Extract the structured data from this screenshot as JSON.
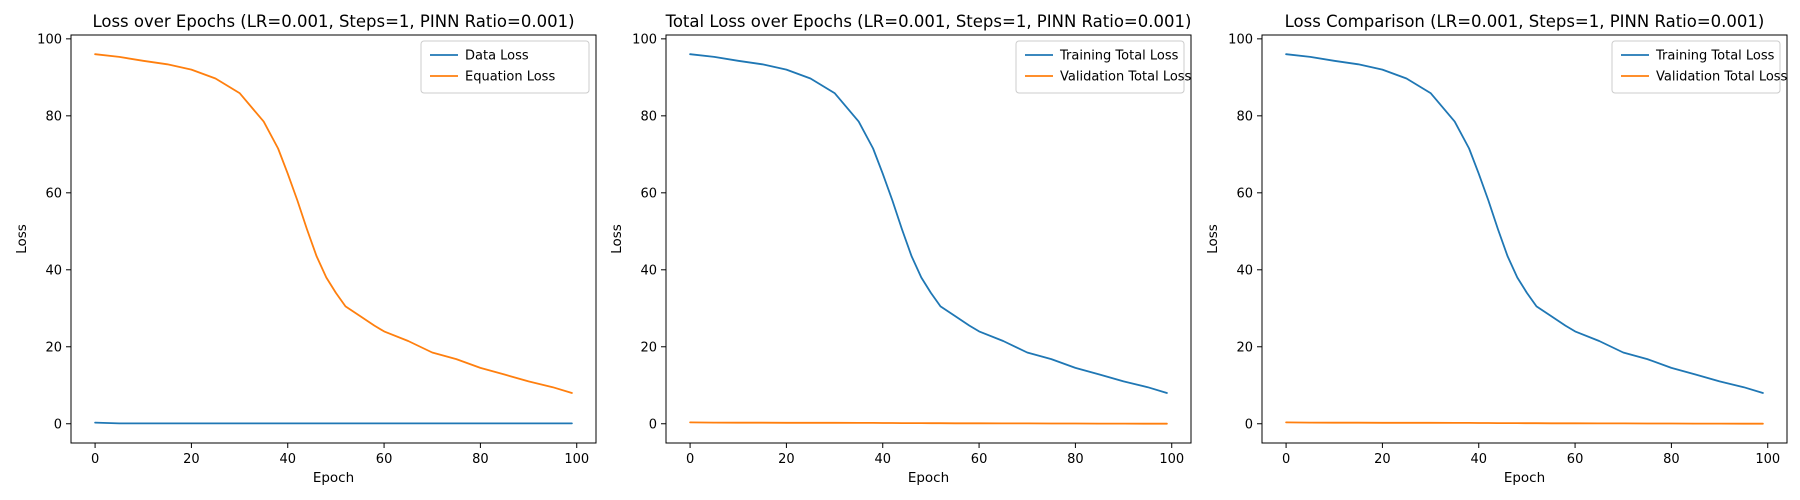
{
  "figure": {
    "background": "#ffffff"
  },
  "colors": {
    "blue": "#1f77b4",
    "orange": "#ff7f0e"
  },
  "chart_data": [
    {
      "type": "line",
      "title": "Loss over Epochs (LR=0.001, Steps=1, PINN Ratio=0.001)",
      "xlabel": "Epoch",
      "ylabel": "Loss",
      "xlim": [
        -5,
        104
      ],
      "ylim": [
        -5,
        101
      ],
      "xticks": [
        0,
        20,
        40,
        60,
        80,
        100
      ],
      "yticks": [
        0,
        20,
        40,
        60,
        80,
        100
      ],
      "grid": false,
      "legend_position": "top-right",
      "x": [
        0,
        5,
        10,
        15,
        20,
        25,
        30,
        35,
        38,
        40,
        42,
        44,
        46,
        48,
        50,
        52,
        55,
        58,
        60,
        65,
        70,
        75,
        80,
        85,
        90,
        95,
        99
      ],
      "series": [
        {
          "name": "Data Loss",
          "color": "#1f77b4",
          "values": [
            0.3,
            0.1,
            0.1,
            0.1,
            0.1,
            0.1,
            0.1,
            0.1,
            0.1,
            0.1,
            0.1,
            0.1,
            0.1,
            0.1,
            0.1,
            0.1,
            0.1,
            0.1,
            0.1,
            0.1,
            0.1,
            0.1,
            0.1,
            0.1,
            0.1,
            0.1,
            0.1
          ]
        },
        {
          "name": "Equation Loss",
          "color": "#ff7f0e",
          "values": [
            96,
            95.3,
            94.3,
            93.4,
            92,
            89.7,
            85.9,
            78.5,
            71.5,
            65,
            58,
            50.5,
            43.5,
            38,
            34,
            30.5,
            28,
            25.5,
            24,
            21.5,
            18.5,
            16.8,
            14.5,
            12.8,
            11,
            9.5,
            8
          ]
        }
      ]
    },
    {
      "type": "line",
      "title": "Total Loss over Epochs (LR=0.001, Steps=1, PINN Ratio=0.001)",
      "xlabel": "Epoch",
      "ylabel": "Loss",
      "xlim": [
        -5,
        104
      ],
      "ylim": [
        -5,
        101
      ],
      "xticks": [
        0,
        20,
        40,
        60,
        80,
        100
      ],
      "yticks": [
        0,
        20,
        40,
        60,
        80,
        100
      ],
      "grid": false,
      "legend_position": "top-right",
      "x": [
        0,
        5,
        10,
        15,
        20,
        25,
        30,
        35,
        38,
        40,
        42,
        44,
        46,
        48,
        50,
        52,
        55,
        58,
        60,
        65,
        70,
        75,
        80,
        85,
        90,
        95,
        99
      ],
      "series": [
        {
          "name": "Training Total Loss",
          "color": "#1f77b4",
          "values": [
            96,
            95.3,
            94.3,
            93.4,
            92,
            89.7,
            85.9,
            78.5,
            71.5,
            65,
            58,
            50.5,
            43.5,
            38,
            34,
            30.5,
            28,
            25.5,
            24,
            21.5,
            18.5,
            16.8,
            14.5,
            12.8,
            11,
            9.5,
            8
          ]
        },
        {
          "name": "Validation Total Loss",
          "color": "#ff7f0e",
          "values": [
            0.35,
            0.3,
            0.28,
            0.27,
            0.26,
            0.25,
            0.24,
            0.22,
            0.21,
            0.2,
            0.19,
            0.18,
            0.17,
            0.16,
            0.15,
            0.14,
            0.13,
            0.12,
            0.11,
            0.1,
            0.08,
            0.07,
            0.06,
            0.05,
            0.04,
            0.02,
            0.01
          ]
        }
      ]
    },
    {
      "type": "line",
      "title": "Loss Comparison (LR=0.001, Steps=1, PINN Ratio=0.001)",
      "xlabel": "Epoch",
      "ylabel": "Loss",
      "xlim": [
        -5,
        104
      ],
      "ylim": [
        -5,
        101
      ],
      "xticks": [
        0,
        20,
        40,
        60,
        80,
        100
      ],
      "yticks": [
        0,
        20,
        40,
        60,
        80,
        100
      ],
      "grid": false,
      "legend_position": "top-right",
      "x": [
        0,
        5,
        10,
        15,
        20,
        25,
        30,
        35,
        38,
        40,
        42,
        44,
        46,
        48,
        50,
        52,
        55,
        58,
        60,
        65,
        70,
        75,
        80,
        85,
        90,
        95,
        99
      ],
      "series": [
        {
          "name": "Training Total Loss",
          "color": "#1f77b4",
          "values": [
            96,
            95.3,
            94.3,
            93.4,
            92,
            89.7,
            85.9,
            78.5,
            71.5,
            65,
            58,
            50.5,
            43.5,
            38,
            34,
            30.5,
            28,
            25.5,
            24,
            21.5,
            18.5,
            16.8,
            14.5,
            12.8,
            11,
            9.5,
            8
          ]
        },
        {
          "name": "Validation Total Loss",
          "color": "#ff7f0e",
          "values": [
            0.35,
            0.3,
            0.28,
            0.27,
            0.26,
            0.25,
            0.24,
            0.22,
            0.21,
            0.2,
            0.19,
            0.18,
            0.17,
            0.16,
            0.15,
            0.14,
            0.13,
            0.12,
            0.11,
            0.1,
            0.08,
            0.07,
            0.06,
            0.05,
            0.04,
            0.02,
            0.01
          ]
        }
      ]
    }
  ]
}
